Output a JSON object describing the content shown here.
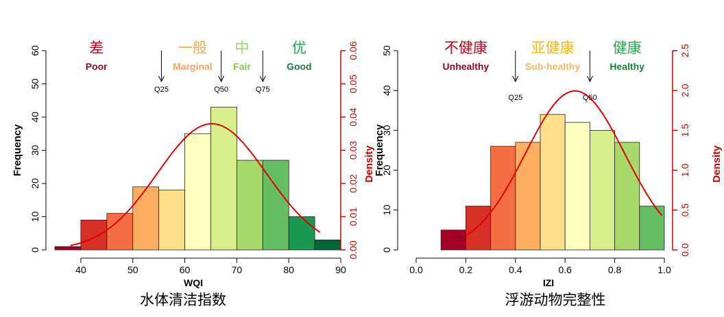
{
  "colors": {
    "axis": "#000000",
    "density_axis": "#cc0000",
    "curve": "#e00000",
    "bar_stroke": "#222222"
  },
  "chart_data": [
    {
      "type": "bar",
      "subtype": "histogram_with_density",
      "title": "水体清洁指数",
      "xlabel": "WQI",
      "ylabel": "Frequency",
      "ylabel_right": "Density",
      "xlim": [
        35,
        90
      ],
      "ylim": [
        0,
        60
      ],
      "ylim_right": [
        0,
        0.06
      ],
      "x_ticks": [
        40,
        50,
        60,
        70,
        80,
        90
      ],
      "y_ticks": [
        0,
        10,
        20,
        30,
        40,
        50,
        60
      ],
      "y_ticks_right": [
        "0.00",
        "0.01",
        "0.02",
        "0.03",
        "0.04",
        "0.05",
        "0.06"
      ],
      "bins": [
        {
          "x0": 35,
          "x1": 40,
          "count": 1,
          "color": "#a50026"
        },
        {
          "x0": 40,
          "x1": 45,
          "count": 9,
          "color": "#d73027"
        },
        {
          "x0": 45,
          "x1": 50,
          "count": 11,
          "color": "#f46d43"
        },
        {
          "x0": 50,
          "x1": 55,
          "count": 19,
          "color": "#fdae61"
        },
        {
          "x0": 55,
          "x1": 60,
          "count": 18,
          "color": "#fee08b"
        },
        {
          "x0": 60,
          "x1": 65,
          "count": 35,
          "color": "#ffffbf"
        },
        {
          "x0": 65,
          "x1": 70,
          "count": 43,
          "color": "#d9ef8b"
        },
        {
          "x0": 70,
          "x1": 75,
          "count": 27,
          "color": "#a6d96a"
        },
        {
          "x0": 75,
          "x1": 80,
          "count": 27,
          "color": "#66bd63"
        },
        {
          "x0": 80,
          "x1": 85,
          "count": 10,
          "color": "#1a9850"
        },
        {
          "x0": 85,
          "x1": 90,
          "count": 3,
          "color": "#006837"
        }
      ],
      "density": {
        "mean": 65.2,
        "sd": 10.5,
        "x_from": 38,
        "x_to": 86
      },
      "quantiles": [
        {
          "label": "Q25",
          "value": 55.5
        },
        {
          "label": "Q50",
          "value": 67
        },
        {
          "label": "Q75",
          "value": 75
        }
      ],
      "categories": [
        {
          "cn": "差",
          "en": "Poor",
          "color_cn": "#c00020",
          "color_en": "#8b0a28",
          "center": 43
        },
        {
          "cn": "一般",
          "en": "Marginal",
          "color_cn": "#f7a94b",
          "color_en": "#f4a460",
          "center": 61.5
        },
        {
          "cn": "中",
          "en": "Fair",
          "color_cn": "#9ed36a",
          "color_en": "#8cc850",
          "center": 71
        },
        {
          "cn": "优",
          "en": "Good",
          "color_cn": "#22a650",
          "color_en": "#1a7a40",
          "center": 82
        }
      ]
    },
    {
      "type": "bar",
      "subtype": "histogram_with_density",
      "title": "浮游动物完整性",
      "xlabel": "IZI",
      "ylabel": "Frequency",
      "ylabel_right": "Density",
      "xlim": [
        0,
        1
      ],
      "ylim": [
        0,
        50
      ],
      "ylim_right": [
        0,
        2.5
      ],
      "x_ticks": [
        "0.0",
        "0.2",
        "0.4",
        "0.6",
        "0.8",
        "1.0"
      ],
      "y_ticks": [
        0,
        10,
        20,
        30,
        40,
        50
      ],
      "y_ticks_right": [
        "0.0",
        "0.5",
        "1.0",
        "1.5",
        "2.0",
        "2.5"
      ],
      "bins": [
        {
          "x0": 0.1,
          "x1": 0.2,
          "count": 5,
          "color": "#a50026"
        },
        {
          "x0": 0.2,
          "x1": 0.3,
          "count": 11,
          "color": "#d73027"
        },
        {
          "x0": 0.3,
          "x1": 0.4,
          "count": 26,
          "color": "#f46d43"
        },
        {
          "x0": 0.4,
          "x1": 0.5,
          "count": 27,
          "color": "#fdae61"
        },
        {
          "x0": 0.5,
          "x1": 0.6,
          "count": 34,
          "color": "#fee08b"
        },
        {
          "x0": 0.6,
          "x1": 0.7,
          "count": 32,
          "color": "#ffffbf"
        },
        {
          "x0": 0.7,
          "x1": 0.8,
          "count": 30,
          "color": "#d9ef8b"
        },
        {
          "x0": 0.8,
          "x1": 0.9,
          "count": 27,
          "color": "#a6d96a"
        },
        {
          "x0": 0.9,
          "x1": 1.0,
          "count": 11,
          "color": "#66bd63"
        }
      ],
      "density": {
        "mean": 0.64,
        "sd": 0.2,
        "x_from": 0.2,
        "x_to": 0.99
      },
      "quantiles": [
        {
          "label": "Q25",
          "value": 0.4
        },
        {
          "label": "Q50",
          "value": 0.7
        }
      ],
      "categories": [
        {
          "cn": "不健康",
          "en": "Unhealthy",
          "color_cn": "#c00020",
          "color_en": "#8b0a28",
          "center": 0.2
        },
        {
          "cn": "亚健康",
          "en": "Sub-healthy",
          "color_cn": "#f5b800",
          "color_en": "#f4b860",
          "center": 0.55
        },
        {
          "cn": "健康",
          "en": "Healthy",
          "color_cn": "#22a650",
          "color_en": "#1a7a40",
          "center": 0.85
        }
      ]
    }
  ]
}
